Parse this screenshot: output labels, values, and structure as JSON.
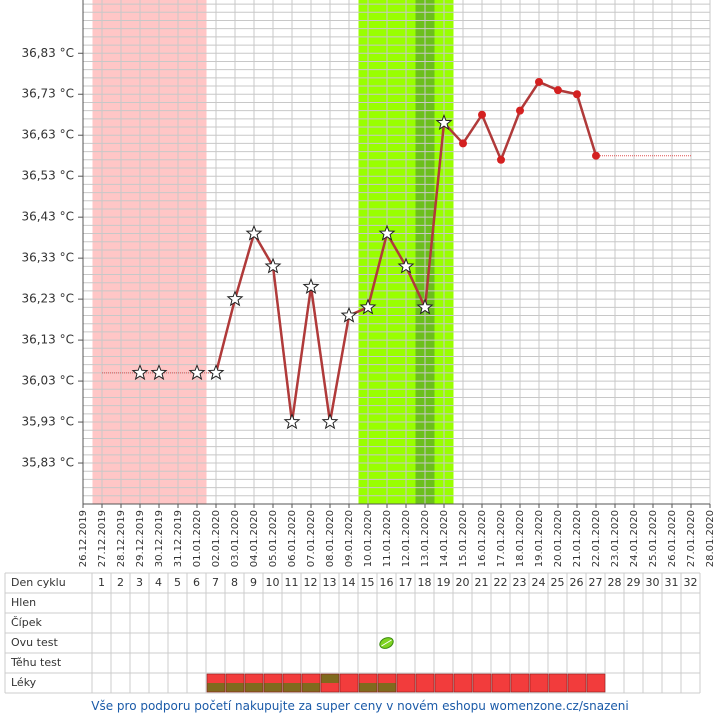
{
  "chart_data": {
    "type": "line",
    "categories": [
      "26.12.2019",
      "27.12.2019",
      "28.12.2019",
      "29.12.2019",
      "30.12.2019",
      "31.12.2019",
      "01.01.2020",
      "02.01.2020",
      "03.01.2020",
      "04.01.2020",
      "05.01.2020",
      "06.01.2020",
      "07.01.2020",
      "08.01.2020",
      "09.01.2020",
      "10.01.2020",
      "11.01.2020",
      "12.01.2020",
      "13.01.2020",
      "14.01.2020",
      "15.01.2020",
      "16.01.2020",
      "17.01.2020",
      "18.01.2020",
      "19.01.2020",
      "20.01.2020",
      "21.01.2020",
      "22.01.2020",
      "23.01.2020",
      "24.01.2020",
      "25.01.2020",
      "26.01.2020",
      "27.01.2020",
      "28.01.2020"
    ],
    "series": [
      {
        "color": "#b03a3a",
        "width": 2.5,
        "values": [
          null,
          null,
          null,
          null,
          null,
          null,
          null,
          36.05,
          36.23,
          36.39,
          36.31,
          35.93,
          36.26,
          35.93,
          36.19,
          36.21,
          36.39,
          36.31,
          36.21,
          36.66,
          36.61,
          36.68,
          36.57,
          36.69,
          36.76,
          36.74,
          36.73,
          36.58,
          null,
          null,
          null,
          null,
          null,
          null
        ],
        "markers": [
          null,
          null,
          null,
          null,
          null,
          null,
          null,
          "star",
          "star",
          "star",
          "star",
          "star",
          "star",
          "star",
          "star",
          "star",
          "star",
          "star",
          "star",
          "star",
          "dot",
          "dot",
          "dot",
          "dot",
          "dot",
          "dot",
          "dot",
          "dot",
          null,
          null,
          null,
          null,
          null,
          null
        ]
      },
      {
        "color": "#e05050",
        "width": 1,
        "dotted": true,
        "values": [
          null,
          36.05,
          36.05,
          36.05,
          36.05,
          36.05,
          36.05,
          36.05,
          null,
          null,
          null,
          null,
          null,
          null,
          null,
          null,
          null,
          null,
          null,
          null,
          null,
          null,
          null,
          null,
          null,
          null,
          null,
          36.58,
          36.58,
          36.58,
          36.58,
          36.58,
          36.58,
          null
        ],
        "markers": [
          null,
          null,
          null,
          "star",
          "star",
          null,
          "star",
          null,
          null,
          null,
          null,
          null,
          null,
          null,
          null,
          null,
          null,
          null,
          null,
          null,
          null,
          null,
          null,
          null,
          null,
          null,
          null,
          null,
          null,
          null,
          null,
          null,
          null,
          null
        ]
      }
    ],
    "ylim": [
      35.73,
      36.96
    ],
    "yticks": [
      {
        "value": 35.83,
        "label": "35,83 °C"
      },
      {
        "value": 35.93,
        "label": "35,93 °C"
      },
      {
        "value": 36.03,
        "label": "36,03 °C"
      },
      {
        "value": 36.13,
        "label": "36,13 °C"
      },
      {
        "value": 36.23,
        "label": "36,23 °C"
      },
      {
        "value": 36.33,
        "label": "36,33 °C"
      },
      {
        "value": 36.43,
        "label": "36,43 °C"
      },
      {
        "value": 36.53,
        "label": "36,53 °C"
      },
      {
        "value": 36.63,
        "label": "36,63 °C"
      },
      {
        "value": 36.73,
        "label": "36,73 °C"
      },
      {
        "value": 36.83,
        "label": "36,83 °C"
      }
    ],
    "ygrid": [
      35.73,
      35.75,
      35.77,
      35.79,
      35.81,
      35.83,
      35.85,
      35.87,
      35.89,
      35.91,
      35.93,
      35.95,
      35.97,
      35.99,
      36.01,
      36.03,
      36.05,
      36.07,
      36.09,
      36.11,
      36.13,
      36.15,
      36.17,
      36.19,
      36.21,
      36.23,
      36.25,
      36.27,
      36.29,
      36.31,
      36.33,
      36.35,
      36.37,
      36.39,
      36.41,
      36.43,
      36.45,
      36.47,
      36.49,
      36.51,
      36.53,
      36.55,
      36.57,
      36.59,
      36.61,
      36.63,
      36.65,
      36.67,
      36.69,
      36.71,
      36.73,
      36.75,
      36.77,
      36.79,
      36.81,
      36.83,
      36.85,
      36.87,
      36.89,
      36.91,
      36.93,
      36.95
    ],
    "bands": [
      {
        "from": "27.12.2019",
        "to": "01.01.2020",
        "color": "#ffc6c6"
      },
      {
        "from": "10.01.2020",
        "to": "14.01.2020",
        "color": "#99ff00"
      },
      {
        "from": "13.01.2020",
        "to": "13.01.2020",
        "color": "#6cbf1c"
      }
    ],
    "grid": true
  },
  "table": {
    "row_labels": [
      "Den cyklu",
      "Hlen",
      "Čípek",
      "Ovu test",
      "Těhu test",
      "Léky"
    ],
    "day_numbers": [
      1,
      2,
      3,
      4,
      5,
      6,
      7,
      8,
      9,
      10,
      11,
      12,
      13,
      14,
      15,
      16,
      17,
      18,
      19,
      20,
      21,
      22,
      23,
      24,
      25,
      26,
      27,
      28,
      29,
      30,
      31,
      32
    ]
  },
  "footer": "Vše pro podporu početí nakupujte za super ceny v novém eshopu womenzone.cz/snazeni"
}
